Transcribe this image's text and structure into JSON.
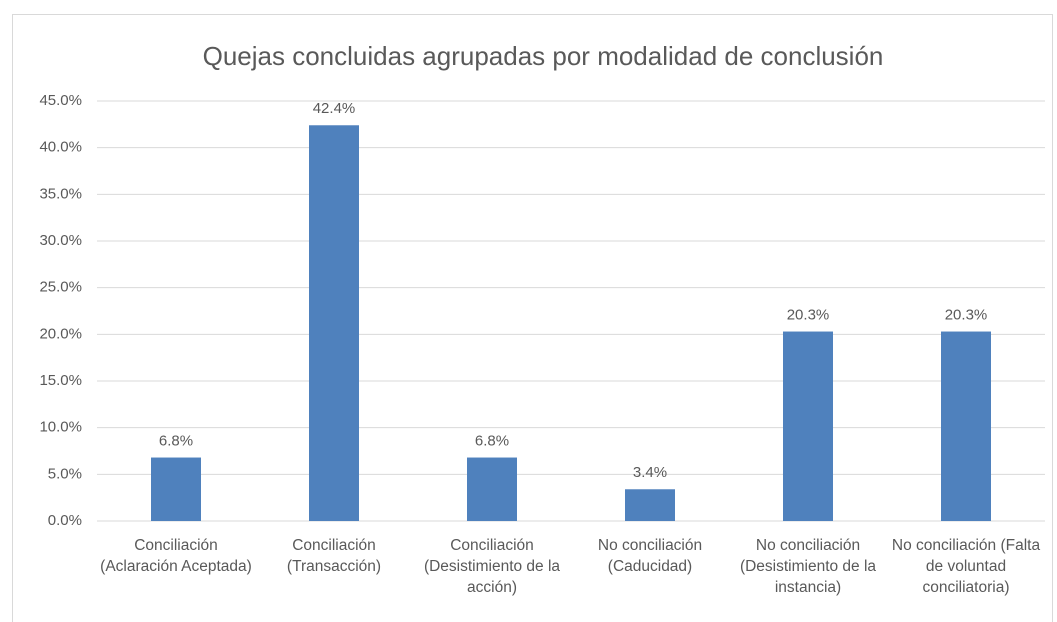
{
  "chart_data": {
    "type": "bar",
    "title": "Quejas concluidas agrupadas por modalidad de conclusión",
    "categories": [
      "Conciliación (Aclaración Aceptada)",
      "Conciliación (Transacción)",
      "Conciliación (Desistimiento de la acción)",
      "No conciliación (Caducidad)",
      "No conciliación (Desistimiento de la instancia)",
      "No conciliación (Falta de voluntad conciliatoria)"
    ],
    "values": [
      6.8,
      42.4,
      6.8,
      3.4,
      20.3,
      20.3
    ],
    "value_labels": [
      "6.8%",
      "42.4%",
      "6.8%",
      "3.4%",
      "20.3%",
      "20.3%"
    ],
    "color": "#4f81bd",
    "ylim": [
      0,
      45
    ],
    "yticks": [
      {
        "value": 0,
        "label": "0.0%"
      },
      {
        "value": 5,
        "label": "5.0%"
      },
      {
        "value": 10,
        "label": "10.0%"
      },
      {
        "value": 15,
        "label": "15.0%"
      },
      {
        "value": 20,
        "label": "20.0%"
      },
      {
        "value": 25,
        "label": "25.0%"
      },
      {
        "value": 30,
        "label": "30.0%"
      },
      {
        "value": 35,
        "label": "35.0%"
      },
      {
        "value": 40,
        "label": "40.0%"
      },
      {
        "value": 45,
        "label": "45.0%"
      }
    ],
    "grid": true
  }
}
